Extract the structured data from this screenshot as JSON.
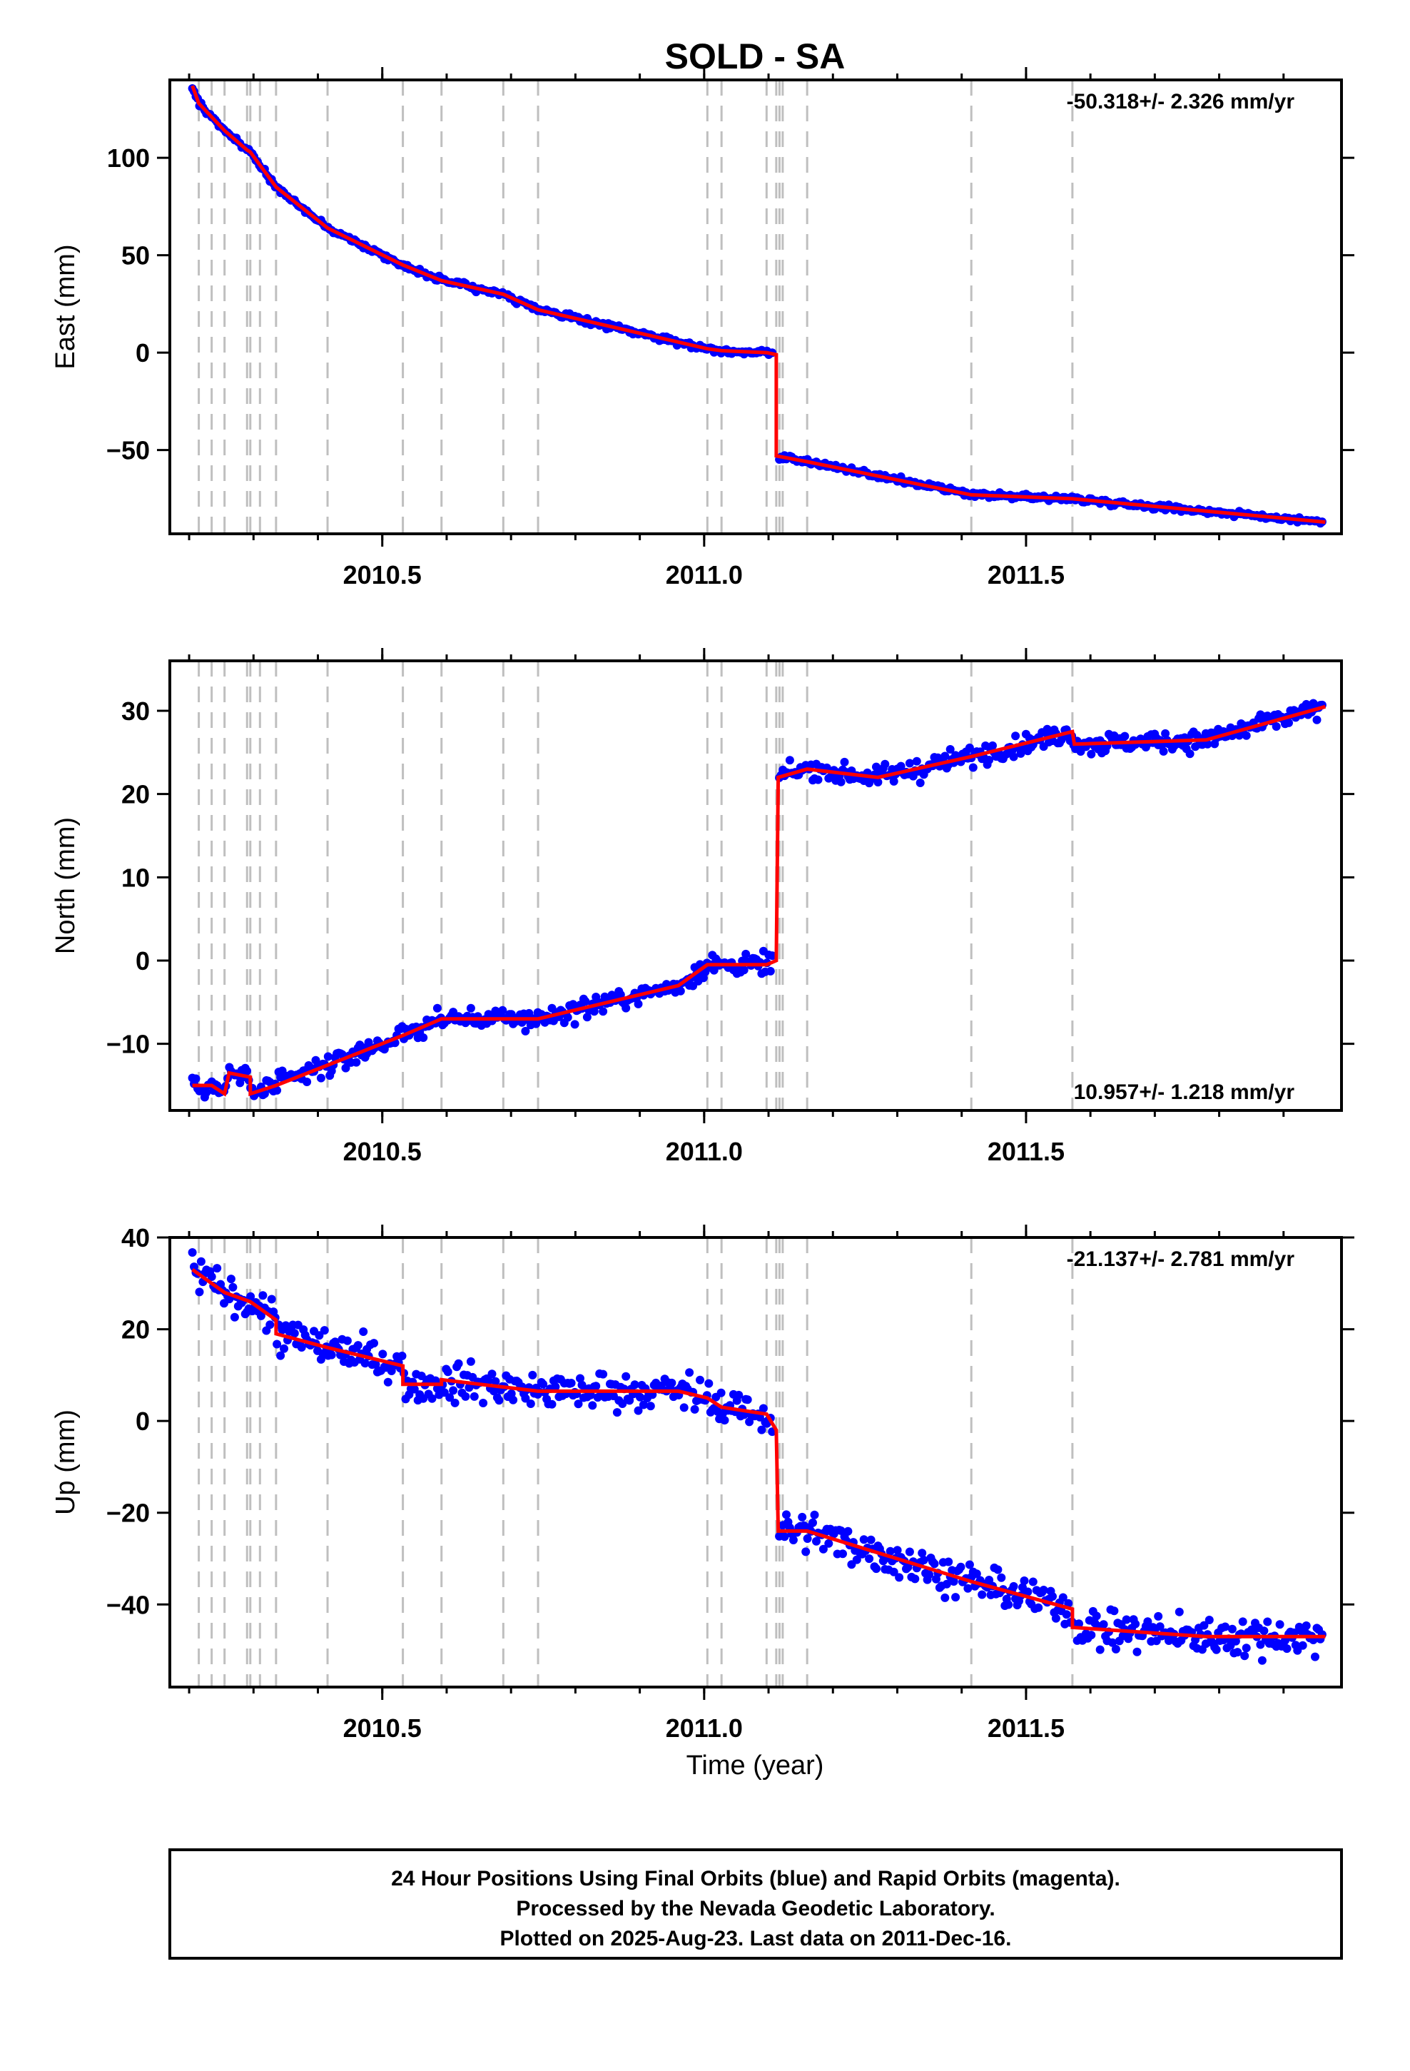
{
  "chart_data": {
    "title": "SOLD - SA",
    "xlabel": "Time (year)",
    "x_ticks": [
      2010.5,
      2011.0,
      2011.5
    ],
    "x_tick_labels": [
      "2010.5",
      "2011.0",
      "2011.5"
    ],
    "xlim": [
      2010.17,
      2011.99
    ],
    "event_lines": [
      2010.215,
      2010.235,
      2010.255,
      2010.29,
      2010.295,
      2010.31,
      2010.335,
      2010.415,
      2010.532,
      2010.592,
      2010.688,
      2010.742,
      2011.005,
      2011.027,
      2011.097,
      2011.112,
      2011.117,
      2011.122,
      2011.16,
      2011.415,
      2011.572
    ],
    "colors": {
      "final_orbits": "#0000ff",
      "rapid_orbits": "#ff00ff",
      "model": "#ff0000",
      "event_lines": "#bfbfbf"
    },
    "panels": [
      {
        "type": "scatter",
        "name": "east",
        "ylabel": "East (mm)",
        "ylim": [
          -93,
          140
        ],
        "y_ticks": [
          -50,
          0,
          50,
          100
        ],
        "y_tick_labels": [
          "−50",
          "0",
          "50",
          "100"
        ],
        "rate_label": "-50.318+/- 2.326 mm/yr",
        "rate_position": "top-right",
        "model": [
          [
            2010.205,
            137
          ],
          [
            2010.215,
            128
          ],
          [
            2010.235,
            121
          ],
          [
            2010.255,
            114
          ],
          [
            2010.29,
            104
          ],
          [
            2010.295,
            103
          ],
          [
            2010.335,
            85
          ],
          [
            2010.415,
            64
          ],
          [
            2010.532,
            45
          ],
          [
            2010.592,
            37
          ],
          [
            2010.688,
            30
          ],
          [
            2010.742,
            22
          ],
          [
            2011.005,
            2
          ],
          [
            2011.027,
            1
          ],
          [
            2011.097,
            0
          ],
          [
            2011.112,
            -1
          ],
          [
            2011.112,
            -53
          ],
          [
            2011.16,
            -56
          ],
          [
            2011.415,
            -73
          ],
          [
            2011.572,
            -75
          ],
          [
            2011.965,
            -87
          ]
        ],
        "noise_mm": 1.3
      },
      {
        "type": "scatter",
        "name": "north",
        "ylabel": "North (mm)",
        "ylim": [
          -18,
          36
        ],
        "y_ticks": [
          -10,
          0,
          10,
          20,
          30
        ],
        "y_tick_labels": [
          "−10",
          "0",
          "10",
          "20",
          "30"
        ],
        "rate_label": "10.957+/- 1.218 mm/yr",
        "rate_position": "bottom-right",
        "model": [
          [
            2010.205,
            -15
          ],
          [
            2010.235,
            -15
          ],
          [
            2010.255,
            -16
          ],
          [
            2010.262,
            -13.5
          ],
          [
            2010.295,
            -14
          ],
          [
            2010.295,
            -16
          ],
          [
            2010.335,
            -15
          ],
          [
            2010.532,
            -9
          ],
          [
            2010.592,
            -7
          ],
          [
            2010.688,
            -7
          ],
          [
            2010.742,
            -7
          ],
          [
            2010.96,
            -3
          ],
          [
            2011.005,
            -0.5
          ],
          [
            2011.097,
            -0.5
          ],
          [
            2011.112,
            0
          ],
          [
            2011.115,
            22
          ],
          [
            2011.16,
            23
          ],
          [
            2011.27,
            22
          ],
          [
            2011.415,
            24.5
          ],
          [
            2011.572,
            27.5
          ],
          [
            2011.575,
            26
          ],
          [
            2011.78,
            26.5
          ],
          [
            2011.965,
            30.5
          ]
        ],
        "noise_mm": 1.1
      },
      {
        "type": "scatter",
        "name": "up",
        "ylabel": "Up (mm)",
        "ylim": [
          -58,
          40
        ],
        "y_ticks": [
          -40,
          -20,
          0,
          20,
          40
        ],
        "y_tick_labels": [
          "−40",
          "−20",
          "0",
          "20",
          "40"
        ],
        "rate_label": "-21.137+/- 2.781 mm/yr",
        "rate_position": "top-right",
        "model": [
          [
            2010.205,
            33
          ],
          [
            2010.235,
            30
          ],
          [
            2010.255,
            28
          ],
          [
            2010.295,
            26
          ],
          [
            2010.335,
            22
          ],
          [
            2010.335,
            19
          ],
          [
            2010.415,
            16
          ],
          [
            2010.532,
            12
          ],
          [
            2010.532,
            8
          ],
          [
            2010.592,
            8
          ],
          [
            2010.592,
            9
          ],
          [
            2010.742,
            6.5
          ],
          [
            2010.96,
            6.5
          ],
          [
            2011.005,
            5
          ],
          [
            2011.027,
            3
          ],
          [
            2011.097,
            1.5
          ],
          [
            2011.112,
            -2
          ],
          [
            2011.115,
            -24
          ],
          [
            2011.16,
            -24
          ],
          [
            2011.415,
            -35
          ],
          [
            2011.572,
            -41
          ],
          [
            2011.572,
            -45
          ],
          [
            2011.78,
            -47
          ],
          [
            2011.965,
            -47
          ]
        ],
        "noise_mm": 3.6
      }
    ],
    "footer": {
      "line1": "24 Hour Positions Using Final Orbits (blue) and Rapid Orbits (magenta).",
      "line2": "Processed by the Nevada Geodetic Laboratory.",
      "line3": "Plotted on 2025-Aug-23. Last data on 2011-Dec-16."
    }
  }
}
